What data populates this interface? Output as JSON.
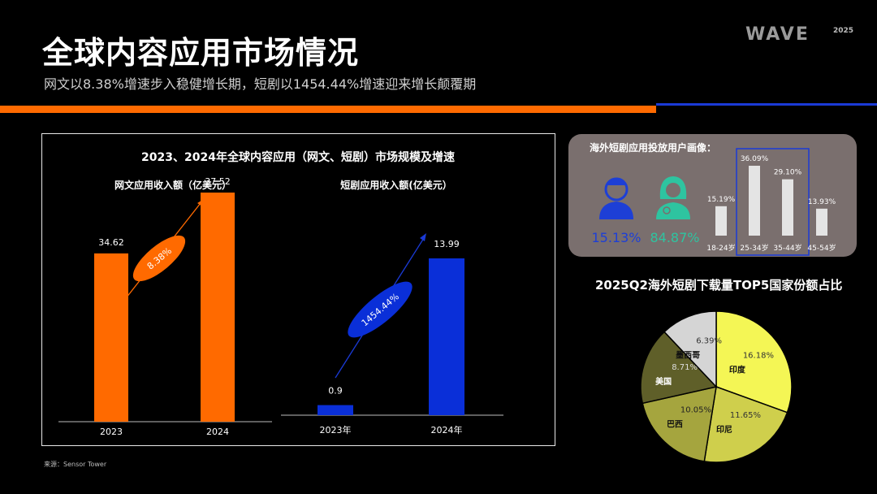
{
  "header": {
    "title": "全球内容应用市场情况",
    "subtitle": "网文以8.38%增速步入稳健增长期，短剧以1454.44%增速迎来增长颠覆期",
    "logo_text": "WAVE",
    "logo_year": "2025"
  },
  "source": "来源：Sensor Tower",
  "colors": {
    "orange": "#ff6a00",
    "blue": "#0a2fd8",
    "accent_green": "#2ec4a0"
  },
  "chart_data": [
    {
      "type": "bar",
      "title": "2023、2024年全球内容应用（网文、短剧）市场规模及增速",
      "subtitle": "网文应用收入额（亿美元）",
      "categories": [
        "2023",
        "2024"
      ],
      "values": [
        34.62,
        37.52
      ],
      "value_labels": [
        "34.62",
        "37.52"
      ],
      "growth_label": "8.38%",
      "color": "#ff6a00"
    },
    {
      "type": "bar",
      "subtitle": "短剧应用收入额(亿美元）",
      "categories": [
        "2023年",
        "2024年"
      ],
      "values": [
        0.9,
        13.99
      ],
      "value_labels": [
        "0.9",
        "13.99"
      ],
      "growth_label": "1454.44%",
      "color": "#0a2fd8"
    },
    {
      "type": "bar",
      "title": "海外短剧应用投放用户画像：",
      "gender_shares": [
        {
          "label": "15.13%",
          "value": 15.13,
          "icon": "male-user-icon",
          "color": "#1d3fd6"
        },
        {
          "label": "84.87%",
          "value": 84.87,
          "icon": "female-user-icon",
          "color": "#2ec4a0"
        }
      ],
      "categories": [
        "18-24岁",
        "25-34岁",
        "35-44岁",
        "45-54岁"
      ],
      "values": [
        15.19,
        36.09,
        29.1,
        13.93
      ],
      "value_labels": [
        "15.19%",
        "36.09%",
        "29.10%",
        "13.93%"
      ],
      "highlight": [
        "25-34岁",
        "35-44岁"
      ]
    },
    {
      "type": "pie",
      "title": "2025Q2海外短剧下载量TOP5国家份额占比",
      "slices": [
        {
          "name": "印度",
          "value": 16.18,
          "label": "16.18%",
          "color": "#f4f655"
        },
        {
          "name": "印尼",
          "value": 11.65,
          "label": "11.65%",
          "color": "#cfcf4c"
        },
        {
          "name": "巴西",
          "value": 10.05,
          "label": "10.05%",
          "color": "#a5a53e"
        },
        {
          "name": "美国",
          "value": 8.71,
          "label": "8.71%",
          "color": "#5f5f29"
        },
        {
          "name": "墨西哥",
          "value": 6.39,
          "label": "6.39%",
          "color": "#d5d5d5"
        }
      ]
    }
  ]
}
